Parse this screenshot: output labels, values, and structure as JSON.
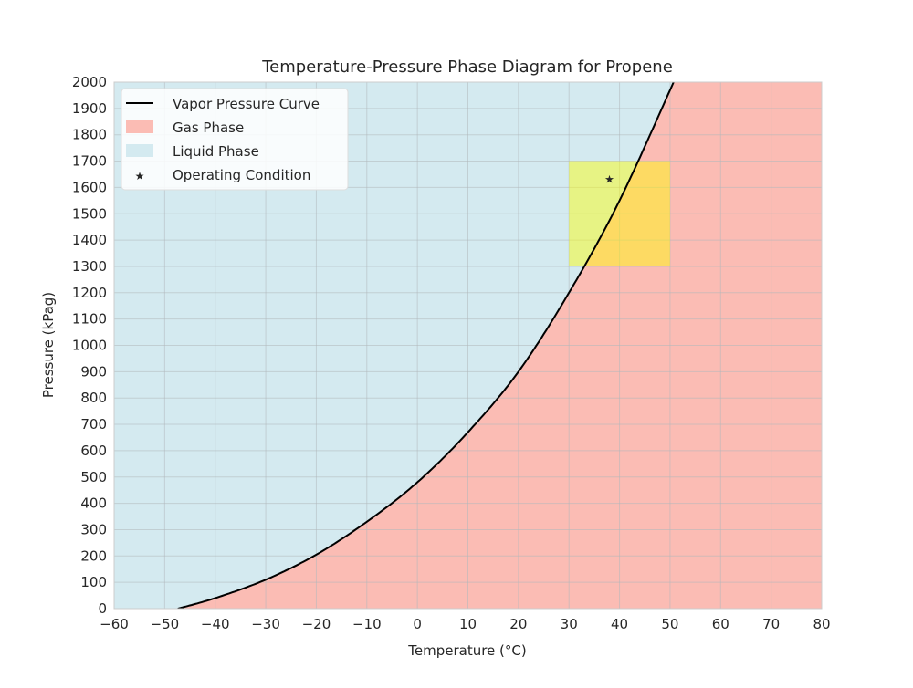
{
  "chart_data": {
    "type": "area",
    "title": "Temperature-Pressure Phase Diagram for Propene",
    "xlabel": "Temperature (°C)",
    "ylabel": "Pressure (kPag)",
    "xlim": [
      -60,
      80
    ],
    "ylim": [
      0,
      2000
    ],
    "xticks": [
      -60,
      -50,
      -40,
      -30,
      -20,
      -10,
      0,
      10,
      20,
      30,
      40,
      50,
      60,
      70,
      80
    ],
    "yticks": [
      0,
      100,
      200,
      300,
      400,
      500,
      600,
      700,
      800,
      900,
      1000,
      1100,
      1200,
      1300,
      1400,
      1500,
      1600,
      1700,
      1800,
      1900,
      2000
    ],
    "grid": true,
    "legend_placement": "top-left",
    "vapor_pressure_curve": {
      "name": "Vapor Pressure Curve",
      "color": "#000000",
      "points": [
        [
          -47.4,
          0
        ],
        [
          -40,
          40
        ],
        [
          -30,
          110
        ],
        [
          -20,
          205
        ],
        [
          -10,
          330
        ],
        [
          0,
          480
        ],
        [
          10,
          670
        ],
        [
          20,
          900
        ],
        [
          30,
          1200
        ],
        [
          40,
          1550
        ],
        [
          50.7,
          2000
        ]
      ]
    },
    "regions": [
      {
        "name": "Gas Phase",
        "color": "#fbbcb4",
        "side": "below-right of curve"
      },
      {
        "name": "Liquid Phase",
        "color": "#d4eaf0",
        "side": "above-left of curve"
      }
    ],
    "operating_window": {
      "t_range": [
        30,
        50
      ],
      "p_range": [
        1300,
        1700
      ],
      "color": "#ffff00"
    },
    "operating_point": {
      "name": "Operating Condition",
      "t": 38,
      "p": 1630,
      "color": "#b5bd1a",
      "marker": "star"
    }
  }
}
